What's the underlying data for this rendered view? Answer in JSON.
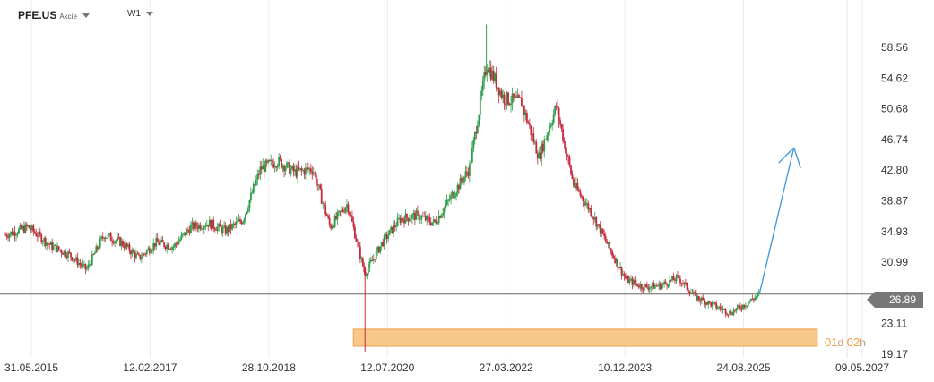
{
  "header": {
    "symbol": "PFE.US",
    "asset_type": "Akcie",
    "timeframe": "W1"
  },
  "countdown": {
    "days": "01",
    "days_unit": "d",
    "hours": "02",
    "hours_unit": "h"
  },
  "chart_data": {
    "type": "candlestick",
    "price_axis": {
      "ticks": [
        "58.56",
        "54.62",
        "50.68",
        "46.74",
        "42.80",
        "38.87",
        "34.93",
        "30.99",
        "23.11",
        "19.17"
      ],
      "ylim": [
        19.17,
        62.0
      ]
    },
    "time_axis": {
      "ticks": [
        "31.05.2015",
        "12.02.2017",
        "28.10.2018",
        "12.07.2020",
        "27.03.2022",
        "10.12.2023",
        "24.08.2025",
        "09.05.2027"
      ]
    },
    "current_price": "26.89",
    "support_zone": {
      "low": 20.2,
      "high": 22.4,
      "start": "2020-01",
      "end": "2026-09"
    },
    "projection_arrow": {
      "from": {
        "date": "2025-11",
        "price": 26.9
      },
      "to": {
        "date": "2026-05",
        "price": 45.7
      }
    },
    "colors": {
      "up": "#2e9e4a",
      "down": "#c8283c",
      "arrow": "#3a96dc",
      "zone_fill": "#f8c88a",
      "zone_stroke": "#f0a050",
      "price_line": "#666666",
      "price_label": "#777777"
    },
    "price_path": [
      [
        "2015-01",
        34.5
      ],
      [
        "2015-05",
        35.5
      ],
      [
        "2015-09",
        33.0
      ],
      [
        "2015-12",
        32.0
      ],
      [
        "2016-03",
        30.0
      ],
      [
        "2016-06",
        34.5
      ],
      [
        "2016-09",
        33.5
      ],
      [
        "2016-12",
        31.5
      ],
      [
        "2017-03",
        33.5
      ],
      [
        "2017-06",
        33.0
      ],
      [
        "2017-09",
        35.5
      ],
      [
        "2017-12",
        36.0
      ],
      [
        "2018-03",
        35.0
      ],
      [
        "2018-06",
        36.5
      ],
      [
        "2018-09",
        43.0
      ],
      [
        "2018-12",
        44.0
      ],
      [
        "2019-03",
        42.5
      ],
      [
        "2019-06",
        43.0
      ],
      [
        "2019-09",
        35.5
      ],
      [
        "2019-12",
        38.5
      ],
      [
        "2020-03",
        29.5
      ],
      [
        "2020-06",
        33.5
      ],
      [
        "2020-09",
        36.5
      ],
      [
        "2020-12",
        37.0
      ],
      [
        "2021-03",
        36.0
      ],
      [
        "2021-06",
        39.5
      ],
      [
        "2021-09",
        43.0
      ],
      [
        "2021-12",
        56.5
      ],
      [
        "2022-03",
        52.0
      ],
      [
        "2022-06",
        51.5
      ],
      [
        "2022-09",
        44.5
      ],
      [
        "2022-12",
        51.0
      ],
      [
        "2023-03",
        41.0
      ],
      [
        "2023-06",
        37.5
      ],
      [
        "2023-09",
        33.0
      ],
      [
        "2023-12",
        28.8
      ],
      [
        "2024-03",
        27.8
      ],
      [
        "2024-06",
        28.0
      ],
      [
        "2024-09",
        29.0
      ],
      [
        "2024-12",
        26.5
      ],
      [
        "2025-03",
        25.5
      ],
      [
        "2025-06",
        24.5
      ],
      [
        "2025-09",
        25.8
      ],
      [
        "2025-11",
        26.9
      ]
    ]
  }
}
